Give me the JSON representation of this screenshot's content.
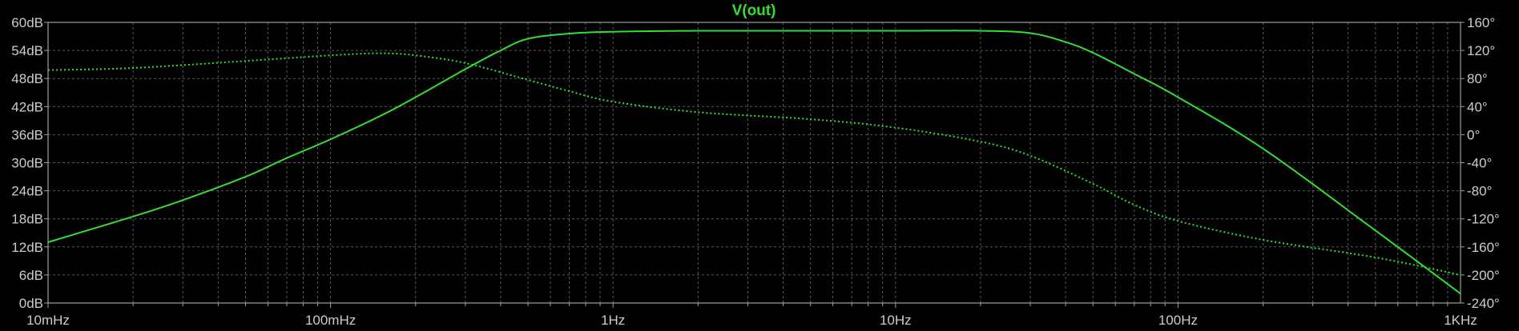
{
  "chart_data": {
    "type": "line",
    "title": "V(out)",
    "x_scale": "log",
    "x_range": [
      0.01,
      1000
    ],
    "x_ticks": [
      {
        "value": 0.01,
        "label": "10mHz"
      },
      {
        "value": 0.1,
        "label": "100mHz"
      },
      {
        "value": 1,
        "label": "1Hz"
      },
      {
        "value": 10,
        "label": "10Hz"
      },
      {
        "value": 100,
        "label": "100Hz"
      },
      {
        "value": 1000,
        "label": "1KHz"
      }
    ],
    "y_left": {
      "range": [
        0,
        60
      ],
      "ticks": [
        {
          "value": 0,
          "label": "0dB"
        },
        {
          "value": 6,
          "label": "6dB"
        },
        {
          "value": 12,
          "label": "12dB"
        },
        {
          "value": 18,
          "label": "18dB"
        },
        {
          "value": 24,
          "label": "24dB"
        },
        {
          "value": 30,
          "label": "30dB"
        },
        {
          "value": 36,
          "label": "36dB"
        },
        {
          "value": 42,
          "label": "42dB"
        },
        {
          "value": 48,
          "label": "48dB"
        },
        {
          "value": 54,
          "label": "54dB"
        },
        {
          "value": 60,
          "label": "60dB"
        }
      ]
    },
    "y_right": {
      "range": [
        -240,
        160
      ],
      "ticks": [
        {
          "value": -240,
          "label": "-240°"
        },
        {
          "value": -200,
          "label": "-200°"
        },
        {
          "value": -160,
          "label": "-160°"
        },
        {
          "value": -120,
          "label": "-120°"
        },
        {
          "value": -80,
          "label": "-80°"
        },
        {
          "value": -40,
          "label": "-40°"
        },
        {
          "value": 0,
          "label": "0°"
        },
        {
          "value": 40,
          "label": "40°"
        },
        {
          "value": 80,
          "label": "80°"
        },
        {
          "value": 120,
          "label": "120°"
        },
        {
          "value": 160,
          "label": "160°"
        }
      ]
    },
    "grid": true,
    "colors": {
      "background": "#000000",
      "trace": "#33dd33",
      "grid": "#5a5a5a",
      "axis": "#a0a0a0",
      "text": "#cccccc"
    },
    "series": [
      {
        "axis": "left",
        "style": "solid",
        "points": [
          [
            0.01,
            13
          ],
          [
            0.02,
            18.5
          ],
          [
            0.03,
            22
          ],
          [
            0.05,
            27
          ],
          [
            0.07,
            31
          ],
          [
            0.1,
            35
          ],
          [
            0.15,
            40
          ],
          [
            0.2,
            44
          ],
          [
            0.3,
            50
          ],
          [
            0.4,
            54
          ],
          [
            0.5,
            56.5
          ],
          [
            0.7,
            57.6
          ],
          [
            1,
            58
          ],
          [
            2,
            58.2
          ],
          [
            5,
            58.2
          ],
          [
            10,
            58.2
          ],
          [
            20,
            58.2
          ],
          [
            30,
            57.7
          ],
          [
            40,
            55.8
          ],
          [
            50,
            53.5
          ],
          [
            70,
            49
          ],
          [
            100,
            44
          ],
          [
            200,
            33
          ],
          [
            500,
            15.5
          ],
          [
            1000,
            2
          ]
        ]
      },
      {
        "axis": "right",
        "style": "dotted",
        "points": [
          [
            0.01,
            92
          ],
          [
            0.02,
            95
          ],
          [
            0.05,
            105
          ],
          [
            0.1,
            113
          ],
          [
            0.15,
            116
          ],
          [
            0.2,
            113
          ],
          [
            0.3,
            102
          ],
          [
            0.5,
            78
          ],
          [
            0.7,
            62
          ],
          [
            1,
            47
          ],
          [
            2,
            32
          ],
          [
            5,
            22
          ],
          [
            10,
            10
          ],
          [
            20,
            -10
          ],
          [
            30,
            -30
          ],
          [
            50,
            -70
          ],
          [
            70,
            -100
          ],
          [
            100,
            -123
          ],
          [
            200,
            -150
          ],
          [
            500,
            -175
          ],
          [
            1000,
            -200
          ]
        ]
      }
    ]
  }
}
